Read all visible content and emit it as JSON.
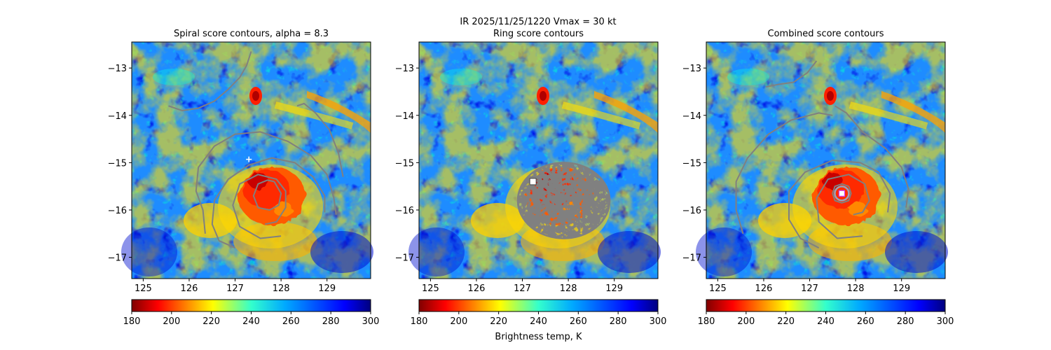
{
  "suptitle": "IR  2025/11/25/1220    Vmax = 30 kt",
  "colorbar_label": "Brightness temp, K",
  "colors": {
    "contour": "#808080",
    "marker": "#ffffff",
    "ring_marker": "#9aa4b8"
  },
  "chart_data": [
    {
      "type": "heatmap",
      "title": "Spiral score contours, alpha =  8.3",
      "xlim": [
        124.75,
        129.95
      ],
      "ylim": [
        -17.45,
        -12.45
      ],
      "xticks": [
        "125",
        "126",
        "127",
        "128",
        "129"
      ],
      "yticks": [
        "−13",
        "−14",
        "−15",
        "−16",
        "−17"
      ],
      "colorbar": {
        "range": [
          180,
          300
        ],
        "ticks": [
          "180",
          "200",
          "220",
          "240",
          "260",
          "280",
          "300"
        ],
        "colormap": "jet_r"
      },
      "center_marker": {
        "lon": 127.3,
        "lat": -14.93,
        "shape": "plus"
      },
      "contours": [
        [
          [
            125.55,
            -13.8
          ],
          [
            125.85,
            -13.9
          ],
          [
            126.2,
            -13.85
          ],
          [
            126.55,
            -13.7
          ],
          [
            126.85,
            -13.45
          ],
          [
            127.1,
            -13.2
          ],
          [
            127.25,
            -12.95
          ],
          [
            127.35,
            -12.65
          ]
        ],
        [
          [
            126.35,
            -16.5
          ],
          [
            126.3,
            -16.0
          ],
          [
            126.15,
            -15.6
          ],
          [
            126.2,
            -15.1
          ],
          [
            126.55,
            -14.65
          ],
          [
            127.0,
            -14.4
          ],
          [
            127.55,
            -14.35
          ],
          [
            128.15,
            -14.55
          ],
          [
            128.65,
            -14.85
          ],
          [
            129.0,
            -15.25
          ],
          [
            129.15,
            -15.75
          ],
          [
            129.2,
            -16.1
          ]
        ],
        [
          [
            127.0,
            -16.8
          ],
          [
            126.65,
            -16.65
          ],
          [
            126.5,
            -16.3
          ],
          [
            126.55,
            -15.8
          ],
          [
            126.85,
            -15.35
          ],
          [
            127.3,
            -15.05
          ],
          [
            127.8,
            -14.9
          ],
          [
            128.3,
            -15.0
          ],
          [
            128.7,
            -15.3
          ],
          [
            128.95,
            -15.7
          ],
          [
            128.95,
            -16.05
          ]
        ],
        [
          [
            128.0,
            -16.55
          ],
          [
            127.55,
            -16.6
          ],
          [
            127.1,
            -16.35
          ],
          [
            126.95,
            -15.9
          ],
          [
            127.1,
            -15.45
          ],
          [
            127.5,
            -15.25
          ],
          [
            127.9,
            -15.35
          ],
          [
            128.1,
            -15.6
          ],
          [
            128.1,
            -15.95
          ],
          [
            127.9,
            -16.25
          ],
          [
            127.65,
            -16.3
          ]
        ],
        [
          [
            127.85,
            -15.4
          ],
          [
            128.0,
            -15.65
          ],
          [
            127.95,
            -15.9
          ],
          [
            127.75,
            -16.0
          ],
          [
            127.5,
            -15.95
          ],
          [
            127.4,
            -15.7
          ],
          [
            127.5,
            -15.45
          ],
          [
            127.7,
            -15.37
          ],
          [
            127.85,
            -15.4
          ]
        ],
        [
          [
            128.35,
            -13.8
          ],
          [
            128.5,
            -13.75
          ],
          [
            128.75,
            -13.95
          ],
          [
            129.05,
            -14.3
          ],
          [
            129.25,
            -14.8
          ],
          [
            129.35,
            -15.3
          ]
        ]
      ]
    },
    {
      "type": "heatmap",
      "title": "Ring score contours",
      "xlim": [
        124.75,
        129.95
      ],
      "ylim": [
        -17.45,
        -12.45
      ],
      "xticks": [
        "125",
        "126",
        "127",
        "128",
        "129"
      ],
      "yticks": [
        "−13",
        "−14",
        "−15",
        "−16",
        "−17"
      ],
      "colorbar": {
        "range": [
          180,
          300
        ],
        "ticks": [
          "180",
          "200",
          "220",
          "240",
          "260",
          "280",
          "300"
        ],
        "colormap": "jet_r"
      },
      "center_marker": {
        "lon": 127.23,
        "lat": -15.4,
        "shape": "square"
      },
      "ring_region": {
        "lon": 127.9,
        "lat": -15.8,
        "rx_deg": 1.0,
        "ry_deg": 0.8
      }
    },
    {
      "type": "heatmap",
      "title": "Combined score contours",
      "xlim": [
        124.75,
        129.95
      ],
      "ylim": [
        -17.45,
        -12.45
      ],
      "xticks": [
        "125",
        "126",
        "127",
        "128",
        "129"
      ],
      "yticks": [
        "−13",
        "−14",
        "−15",
        "−16",
        "−17"
      ],
      "colorbar": {
        "range": [
          180,
          300
        ],
        "ticks": [
          "180",
          "200",
          "220",
          "240",
          "260",
          "280",
          "300"
        ],
        "colormap": "jet_r"
      },
      "center_marker": {
        "lon": 127.7,
        "lat": -15.65,
        "shape": "square"
      },
      "contours": [
        [
          [
            126.05,
            -13.4
          ],
          [
            126.3,
            -13.35
          ],
          [
            126.65,
            -13.3
          ],
          [
            126.95,
            -13.1
          ],
          [
            127.15,
            -12.85
          ]
        ],
        [
          [
            125.55,
            -16.5
          ],
          [
            125.4,
            -16.0
          ],
          [
            125.4,
            -15.4
          ],
          [
            125.65,
            -14.9
          ],
          [
            126.1,
            -14.4
          ],
          [
            126.6,
            -14.1
          ],
          [
            127.2,
            -13.95
          ],
          [
            127.5,
            -14.0
          ]
        ],
        [
          [
            127.55,
            -13.8
          ],
          [
            127.8,
            -13.95
          ],
          [
            128.15,
            -14.35
          ],
          [
            128.65,
            -14.7
          ],
          [
            129.0,
            -15.1
          ],
          [
            129.15,
            -15.55
          ],
          [
            129.1,
            -15.95
          ]
        ],
        [
          [
            127.2,
            -16.8
          ],
          [
            126.8,
            -16.6
          ],
          [
            126.55,
            -16.2
          ],
          [
            126.55,
            -15.6
          ],
          [
            126.9,
            -15.2
          ],
          [
            127.5,
            -14.95
          ],
          [
            128.1,
            -15.0
          ],
          [
            128.5,
            -15.2
          ],
          [
            128.75,
            -15.65
          ],
          [
            128.7,
            -16.05
          ]
        ],
        [
          [
            128.15,
            -16.55
          ],
          [
            127.6,
            -16.6
          ],
          [
            127.2,
            -16.25
          ],
          [
            127.15,
            -15.75
          ],
          [
            127.4,
            -15.35
          ],
          [
            127.85,
            -15.25
          ],
          [
            128.2,
            -15.45
          ],
          [
            128.3,
            -15.8
          ],
          [
            128.15,
            -16.05
          ],
          [
            127.95,
            -16.1
          ]
        ],
        [
          [
            127.85,
            -15.5
          ],
          [
            127.9,
            -15.65
          ],
          [
            127.85,
            -15.8
          ],
          [
            127.7,
            -15.85
          ],
          [
            127.55,
            -15.8
          ],
          [
            127.5,
            -15.65
          ],
          [
            127.55,
            -15.5
          ],
          [
            127.7,
            -15.45
          ],
          [
            127.85,
            -15.5
          ]
        ]
      ]
    }
  ]
}
